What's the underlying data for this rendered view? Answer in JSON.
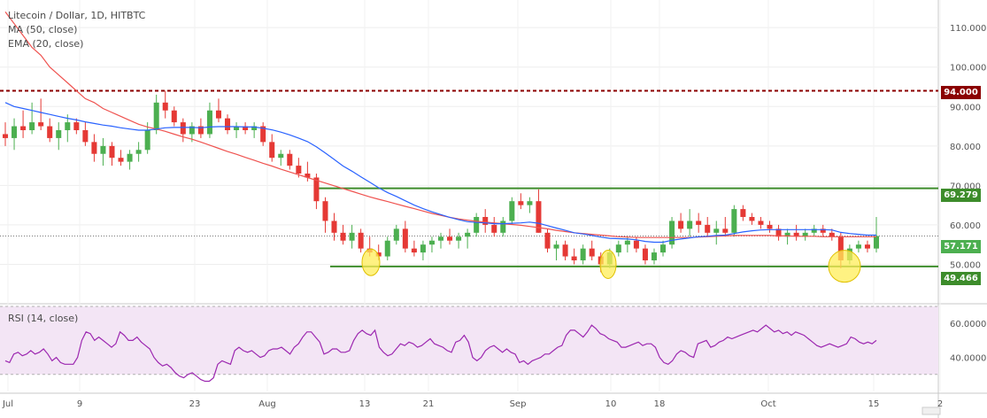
{
  "header": {
    "symbol_line": "Litecoin / Dollar, 1D, HITBTC",
    "ma_line": "MA (50, close)",
    "ema_line": "EMA (20, close)"
  },
  "rsi": {
    "legend": "RSI (14, close)"
  },
  "price_labels": {
    "resistance_high": "94.000",
    "resistance_mid": "69.279",
    "current": "57.171",
    "support": "49.466"
  },
  "colors": {
    "up": "#4caf50",
    "down": "#e53935",
    "ema": "#2962ff",
    "ma": "#ef5350",
    "resistance_high": "#8b0000",
    "green_line": "#3d8c2b",
    "rsi_line": "#9c27b0",
    "rsi_band": "#f3e5f5",
    "highlight": "#ffee58"
  },
  "chart_data": {
    "type": "candlestick",
    "title": "Litecoin / Dollar, 1D, HITBTC",
    "price_axis": {
      "ticks": [
        "110.000",
        "100.000",
        "90.000",
        "80.000",
        "70.000",
        "60.000",
        "50.000"
      ],
      "ylim": [
        40,
        117
      ]
    },
    "time_axis": {
      "ticks": [
        "Jul",
        "9",
        "23",
        "Aug",
        "13",
        "21",
        "Sep",
        "10",
        "18",
        "Oct",
        "15",
        "2"
      ]
    },
    "horizontal_lines": [
      {
        "value": 94.0,
        "style": "dashed",
        "label": "94.000"
      },
      {
        "value": 69.279,
        "style": "solid",
        "label": "69.279"
      },
      {
        "value": 49.466,
        "style": "solid",
        "label": "49.466"
      }
    ],
    "current_price": 57.171,
    "candles": [
      [
        83,
        86,
        80,
        82
      ],
      [
        82,
        87,
        79,
        85
      ],
      [
        85,
        89,
        82,
        84
      ],
      [
        84,
        91,
        83,
        86
      ],
      [
        86,
        92,
        84,
        85
      ],
      [
        85,
        87,
        81,
        82
      ],
      [
        82,
        86,
        79,
        84
      ],
      [
        84,
        88,
        81,
        86
      ],
      [
        86,
        87,
        83,
        84
      ],
      [
        84,
        86,
        80,
        81
      ],
      [
        81,
        83,
        76,
        78
      ],
      [
        78,
        82,
        75,
        80
      ],
      [
        80,
        81,
        75,
        77
      ],
      [
        77,
        79,
        75,
        76
      ],
      [
        76,
        79,
        74,
        78
      ],
      [
        78,
        81,
        76,
        79
      ],
      [
        79,
        86,
        78,
        84
      ],
      [
        84,
        93,
        83,
        91
      ],
      [
        91,
        94,
        87,
        89
      ],
      [
        89,
        90,
        85,
        86
      ],
      [
        86,
        87,
        81,
        83
      ],
      [
        83,
        86,
        81,
        85
      ],
      [
        85,
        87,
        82,
        83
      ],
      [
        83,
        91,
        82,
        89
      ],
      [
        89,
        92,
        86,
        87
      ],
      [
        87,
        88,
        83,
        84
      ],
      [
        84,
        86,
        82,
        85
      ],
      [
        85,
        86,
        83,
        84
      ],
      [
        84,
        86,
        82,
        85
      ],
      [
        85,
        86,
        80,
        81
      ],
      [
        81,
        83,
        76,
        77
      ],
      [
        77,
        79,
        75,
        78
      ],
      [
        78,
        79,
        74,
        75
      ],
      [
        75,
        77,
        72,
        73
      ],
      [
        73,
        76,
        71,
        72
      ],
      [
        72,
        73,
        64,
        66
      ],
      [
        66,
        67,
        58,
        61
      ],
      [
        61,
        63,
        56,
        58
      ],
      [
        58,
        60,
        55,
        56
      ],
      [
        56,
        60,
        54,
        58
      ],
      [
        58,
        59,
        53,
        54
      ],
      [
        54,
        57,
        52,
        53
      ],
      [
        53,
        55,
        51,
        52
      ],
      [
        52,
        57,
        51,
        56
      ],
      [
        56,
        60,
        55,
        59
      ],
      [
        59,
        61,
        53,
        54
      ],
      [
        54,
        56,
        52,
        53
      ],
      [
        53,
        56,
        51,
        55
      ],
      [
        55,
        57,
        53,
        56
      ],
      [
        56,
        58,
        54,
        57
      ],
      [
        57,
        59,
        55,
        56
      ],
      [
        56,
        58,
        54,
        57
      ],
      [
        57,
        59,
        54,
        58
      ],
      [
        58,
        63,
        57,
        62
      ],
      [
        62,
        64,
        58,
        60
      ],
      [
        60,
        62,
        57,
        58
      ],
      [
        58,
        62,
        57,
        61
      ],
      [
        61,
        67,
        60,
        66
      ],
      [
        66,
        68,
        64,
        65
      ],
      [
        65,
        67,
        63,
        66
      ],
      [
        66,
        69,
        58,
        58
      ],
      [
        58,
        59,
        53,
        54
      ],
      [
        54,
        56,
        51,
        55
      ],
      [
        55,
        56,
        51,
        52
      ],
      [
        52,
        54,
        50,
        51
      ],
      [
        51,
        55,
        50,
        54
      ],
      [
        54,
        56,
        51,
        52
      ],
      [
        52,
        53,
        48,
        50
      ],
      [
        50,
        54,
        49,
        53
      ],
      [
        53,
        56,
        52,
        55
      ],
      [
        55,
        57,
        53,
        56
      ],
      [
        56,
        57,
        53,
        54
      ],
      [
        54,
        55,
        50,
        51
      ],
      [
        51,
        54,
        50,
        53
      ],
      [
        53,
        56,
        52,
        55
      ],
      [
        55,
        62,
        54,
        61
      ],
      [
        61,
        63,
        58,
        59
      ],
      [
        59,
        64,
        57,
        61
      ],
      [
        61,
        63,
        58,
        60
      ],
      [
        60,
        62,
        57,
        58
      ],
      [
        58,
        61,
        55,
        59
      ],
      [
        59,
        62,
        57,
        58
      ],
      [
        58,
        65,
        57,
        64
      ],
      [
        64,
        65,
        61,
        62
      ],
      [
        62,
        63,
        60,
        61
      ],
      [
        61,
        62,
        59,
        60
      ],
      [
        60,
        61,
        58,
        59
      ],
      [
        59,
        60,
        56,
        57
      ],
      [
        57,
        59,
        55,
        58
      ],
      [
        58,
        60,
        56,
        57
      ],
      [
        57,
        59,
        56,
        58
      ],
      [
        58,
        60,
        57,
        59
      ],
      [
        59,
        60,
        57,
        58
      ],
      [
        58,
        59,
        56,
        57
      ],
      [
        57,
        58,
        49,
        51
      ],
      [
        51,
        55,
        50,
        54
      ],
      [
        54,
        56,
        53,
        55
      ],
      [
        55,
        56,
        53,
        54
      ],
      [
        54,
        62,
        53,
        57.171
      ]
    ],
    "series": [
      {
        "name": "MA (50, close)",
        "values": [
          114,
          111,
          108,
          105,
          103,
          100,
          98,
          96,
          94,
          92,
          91,
          89.5,
          88.5,
          87.5,
          86.5,
          85.5,
          84.8,
          84.3,
          83.7,
          83,
          82.3,
          81.7,
          81,
          80.2,
          79.4,
          78.6,
          77.9,
          77.1,
          76.4,
          75.6,
          74.9,
          74.1,
          73.4,
          72.7,
          72,
          71.3,
          70.6,
          69.9,
          69.2,
          68.5,
          67.8,
          67.1,
          66.5,
          65.9,
          65.3,
          64.7,
          64.1,
          63.5,
          62.9,
          62.4,
          61.9,
          61.5,
          61.2,
          60.9,
          60.7,
          60.5,
          60.3,
          60.1,
          59.9,
          59.6,
          59.3,
          59,
          58.6,
          58.3,
          58,
          57.8,
          57.6,
          57.4,
          57.2,
          57,
          56.9,
          56.8,
          56.8,
          56.8,
          56.8,
          56.8,
          56.8,
          56.8,
          56.9,
          57,
          57.1,
          57.2,
          57.3,
          57.3,
          57.3,
          57.3,
          57.3,
          57.2,
          57.2,
          57.1,
          57.1,
          57.1,
          57,
          57,
          57,
          57,
          57,
          57,
          57
        ]
      },
      {
        "name": "EMA (20, close)",
        "values": [
          91,
          90,
          89.5,
          89,
          88.5,
          88,
          87.5,
          87,
          86.6,
          86.1,
          85.7,
          85.3,
          85,
          84.6,
          84.3,
          84,
          84,
          84.3,
          84.6,
          84.7,
          84.7,
          84.7,
          84.6,
          84.8,
          84.9,
          84.9,
          84.9,
          84.8,
          84.8,
          84.5,
          84.1,
          83.5,
          82.8,
          82,
          81.1,
          79.8,
          78.2,
          76.6,
          74.9,
          73.6,
          72.2,
          70.8,
          69.4,
          68.2,
          67.2,
          66.1,
          65,
          64.1,
          63.3,
          62.6,
          61.9,
          61.3,
          60.8,
          60.6,
          60.5,
          60.3,
          60.3,
          60.4,
          60.5,
          60.7,
          60.4,
          59.8,
          59.2,
          58.6,
          58,
          57.7,
          57.3,
          56.9,
          56.6,
          56.5,
          56.4,
          56.2,
          55.8,
          55.6,
          55.6,
          56.1,
          56.4,
          56.7,
          57,
          57.1,
          57.3,
          57.4,
          57.8,
          58.2,
          58.5,
          58.7,
          58.8,
          58.8,
          58.8,
          58.8,
          58.8,
          58.8,
          58.8,
          58.7,
          58.1,
          57.8,
          57.6,
          57.4,
          57.4
        ]
      }
    ],
    "rsi": {
      "name": "RSI (14, close)",
      "ylim": [
        20,
        70
      ],
      "ticks": [
        "60.0000",
        "40.0000"
      ],
      "band": [
        30,
        70
      ],
      "values": [
        38,
        37,
        42,
        43,
        41,
        42,
        44,
        42,
        43,
        45,
        42,
        38,
        40,
        37,
        36,
        36,
        36,
        40,
        50,
        55,
        54,
        50,
        52,
        50,
        48,
        46,
        48,
        55,
        53,
        50,
        50,
        52,
        49,
        47,
        45,
        40,
        37,
        35,
        36,
        34,
        31,
        29,
        28,
        30,
        31,
        29,
        27,
        26,
        26,
        28,
        36,
        38,
        37,
        36,
        44,
        46,
        44,
        43,
        44,
        42,
        40,
        41,
        44,
        45,
        45,
        46,
        44,
        42,
        46,
        48,
        52,
        55,
        55,
        52,
        49,
        42,
        43,
        45,
        45,
        43,
        43,
        44,
        50,
        54,
        56,
        54,
        53,
        56,
        46,
        43,
        41,
        42,
        45,
        48,
        47,
        49,
        48,
        46,
        47,
        49,
        51,
        48,
        47,
        46,
        44,
        43,
        49,
        50,
        53,
        49,
        40,
        38,
        40,
        44,
        46,
        47,
        45,
        43,
        45,
        43,
        42,
        37,
        38,
        36,
        38,
        39,
        40,
        42,
        42,
        44,
        46,
        47,
        53,
        56,
        56,
        54,
        52,
        55,
        59,
        57,
        54,
        53,
        51,
        50,
        49,
        46,
        46,
        47,
        48,
        49,
        47,
        48,
        48,
        46,
        40,
        37,
        36,
        38,
        42,
        44,
        43,
        41,
        40,
        48,
        49,
        50,
        46,
        47,
        49,
        50,
        52,
        51,
        52,
        53,
        54,
        55,
        56,
        55,
        57,
        59,
        57,
        55,
        56,
        54,
        55,
        53,
        55,
        54,
        53,
        51,
        49,
        47,
        46,
        47,
        48,
        47,
        46,
        47,
        48,
        52,
        51,
        49,
        48,
        49,
        48,
        50
      ]
    }
  }
}
